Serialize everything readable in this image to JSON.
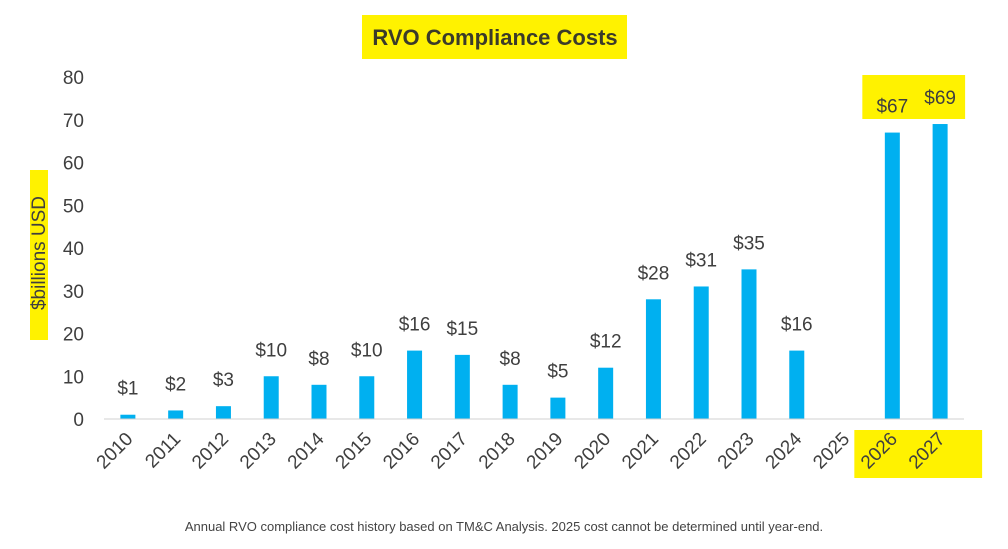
{
  "chart_data": {
    "type": "bar",
    "title": "RVO Compliance Costs",
    "ylabel": "$billions USD",
    "xlabel": "",
    "categories": [
      "2010",
      "2011",
      "2012",
      "2013",
      "2014",
      "2015",
      "2016",
      "2017",
      "2018",
      "2019",
      "2020",
      "2021",
      "2022",
      "2023",
      "2024",
      "2025",
      "2026",
      "2027"
    ],
    "values": [
      1,
      2,
      3,
      10,
      8,
      10,
      16,
      15,
      8,
      5,
      12,
      28,
      31,
      35,
      16,
      null,
      67,
      69
    ],
    "data_labels": [
      "$1",
      "$2",
      "$3",
      "$10",
      "$8",
      "$10",
      "$16",
      "$15",
      "$8",
      "$5",
      "$12",
      "$28",
      "$31",
      "$35",
      "$16",
      "",
      "$67",
      "$69"
    ],
    "ylim": [
      0,
      80
    ],
    "yticks": [
      0,
      10,
      20,
      30,
      40,
      50,
      60,
      70,
      80
    ],
    "grid": false,
    "bar_color": "#00b0f0",
    "highlight_color": "#fff200",
    "highlighted": [
      "title",
      "ylabel",
      "2026",
      "2027"
    ]
  },
  "footnote": "Annual RVO compliance cost history based on TM&C Analysis. 2025 cost cannot be determined until year-end."
}
